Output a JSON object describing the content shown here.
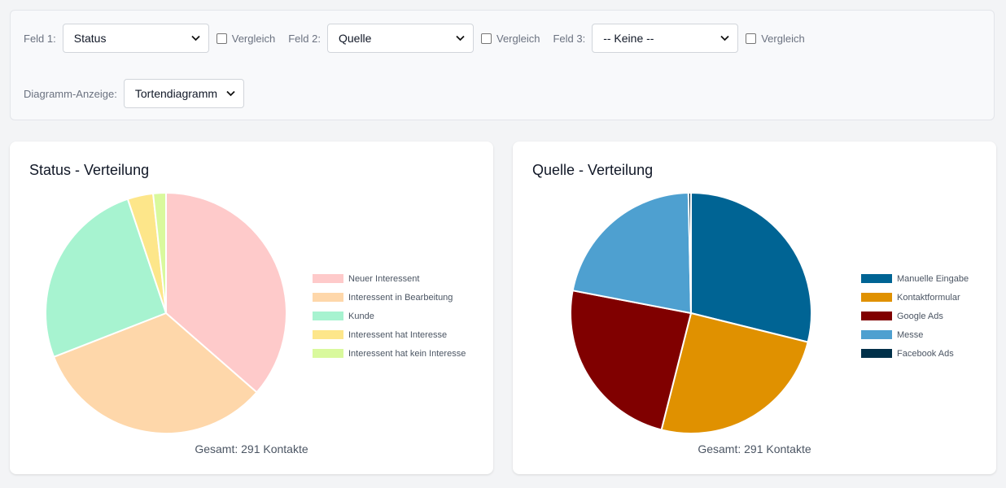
{
  "filters": {
    "field1": {
      "label": "Feld 1:",
      "value": "Status",
      "compare_label": "Vergleich",
      "compare_checked": false
    },
    "field2": {
      "label": "Feld 2:",
      "value": "Quelle",
      "compare_label": "Vergleich",
      "compare_checked": false
    },
    "field3": {
      "label": "Feld 3:",
      "value": "-- Keine --",
      "compare_label": "Vergleich",
      "compare_checked": false
    },
    "chart_display": {
      "label": "Diagramm-Anzeige:",
      "value": "Tortendiagramm"
    }
  },
  "chart_data": [
    {
      "type": "pie",
      "title": "Status - Verteilung",
      "categories": [
        "Neuer Interessent",
        "Interessent in Bearbeitung",
        "Kunde",
        "Interessent hat Interesse",
        "Interessent hat kein Interesse"
      ],
      "values": [
        106,
        95,
        75,
        10,
        5
      ],
      "colors": [
        "#fecaca",
        "#fed7aa",
        "#a7f3d0",
        "#fde68a",
        "#d9f99d"
      ],
      "legend_position": "right",
      "footer": "Gesamt: 291 Kontakte"
    },
    {
      "type": "pie",
      "title": "Quelle - Verteilung",
      "categories": [
        "Manuelle Eingabe",
        "Kontaktformular",
        "Google Ads",
        "Messe",
        "Facebook Ads"
      ],
      "values": [
        84,
        73,
        70,
        63,
        1
      ],
      "colors": [
        "#006494",
        "#e09100",
        "#800000",
        "#4ea0d0",
        "#003049"
      ],
      "legend_position": "right",
      "footer": "Gesamt: 291 Kontakte"
    }
  ]
}
